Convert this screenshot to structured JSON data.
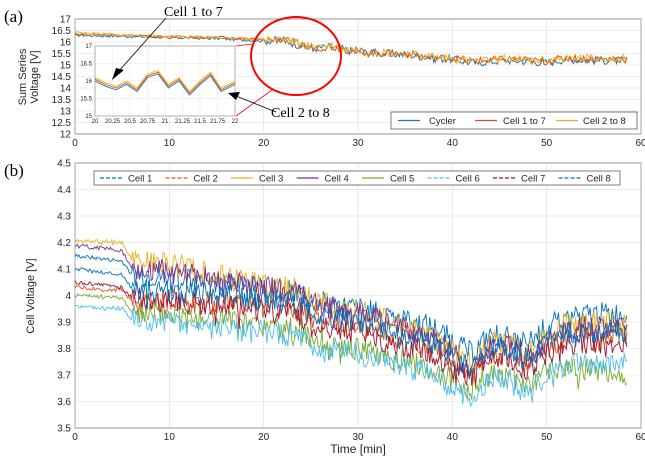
{
  "panel_labels": [
    "(a)",
    "(b)"
  ],
  "annotations": {
    "a": "Cell 1 to 7",
    "b": "Cell 2 to 8"
  },
  "colors": {
    "Cycler": "#1f77b4",
    "Cell 1 to 7": "#d95319",
    "Cell 2 to 8": "#edb120",
    "Cell 1": "#0072bd",
    "Cell 2": "#d95319",
    "Cell 3": "#edb120",
    "Cell 4": "#7e2f8e",
    "Cell 5": "#77ac30",
    "Cell 6": "#4dbeee",
    "Cell 7": "#a2142f",
    "Cell 8": "#0072bd",
    "highlight": "#ff0000"
  },
  "chart_data": [
    {
      "type": "line",
      "ylabel": "Sum Series\nVoltage [V]",
      "xlim": [
        0,
        60
      ],
      "ylim": [
        12,
        17
      ],
      "xticks": [
        0,
        10,
        20,
        30,
        40,
        50,
        60
      ],
      "yticks": [
        12,
        12.5,
        13,
        13.5,
        14,
        14.5,
        15,
        15.5,
        16,
        16.5,
        17
      ],
      "ytick_labels": [
        "12",
        "12.5",
        "13",
        "13.5",
        "14",
        "14.5",
        "15",
        "15.5",
        "16",
        "16.5",
        "17"
      ],
      "grid": true,
      "legend_position": "bottom-right",
      "x": [
        0,
        5,
        10,
        15,
        20,
        22,
        25,
        27,
        30,
        33,
        35,
        38,
        40,
        42,
        44,
        46,
        48,
        50,
        52,
        55,
        58.5
      ],
      "series": [
        {
          "name": "Cycler",
          "values": [
            16.3,
            16.25,
            16.2,
            16.15,
            16.05,
            16.1,
            15.7,
            15.8,
            15.55,
            15.5,
            15.45,
            15.3,
            15.25,
            15.1,
            15.15,
            15.2,
            15.15,
            15.1,
            15.25,
            15.2,
            15.2
          ]
        },
        {
          "name": "Cell 1 to 7",
          "values": [
            16.35,
            16.3,
            16.2,
            16.2,
            16.1,
            16.1,
            15.75,
            15.8,
            15.6,
            15.5,
            15.5,
            15.3,
            15.3,
            15.15,
            15.2,
            15.25,
            15.2,
            15.15,
            15.3,
            15.25,
            15.25
          ]
        },
        {
          "name": "Cell 2 to 8",
          "values": [
            16.4,
            16.3,
            16.25,
            16.2,
            16.1,
            16.15,
            15.8,
            15.85,
            15.6,
            15.55,
            15.5,
            15.35,
            15.3,
            15.2,
            15.2,
            15.3,
            15.2,
            15.2,
            15.3,
            15.3,
            15.3
          ]
        }
      ],
      "inset": {
        "xlim": [
          20,
          22
        ],
        "ylim": [
          15,
          17
        ],
        "xtick_labels": [
          "20",
          "20.25",
          "20.5",
          "20.75",
          "21",
          "21.25",
          "21.5",
          "21.75",
          "22"
        ],
        "ytick_labels": [
          "15",
          "15.5",
          "16",
          "16.5",
          "17"
        ],
        "x": [
          20,
          20.15,
          20.3,
          20.45,
          20.6,
          20.75,
          20.9,
          21.05,
          21.2,
          21.35,
          21.5,
          21.65,
          21.8,
          22
        ],
        "series": [
          {
            "name": "Cycler",
            "values": [
              16.0,
              15.85,
              15.75,
              15.9,
              15.7,
              16.1,
              16.2,
              15.8,
              16.0,
              15.6,
              15.9,
              16.15,
              15.7,
              15.9
            ]
          },
          {
            "name": "Cell 1 to 7",
            "values": [
              16.05,
              15.9,
              15.8,
              15.95,
              15.75,
              16.15,
              16.25,
              15.85,
              16.05,
              15.65,
              15.95,
              16.2,
              15.75,
              15.95
            ]
          },
          {
            "name": "Cell 2 to 8",
            "values": [
              16.1,
              15.95,
              15.85,
              16.0,
              15.8,
              16.2,
              16.3,
              15.9,
              16.1,
              15.7,
              16.0,
              16.25,
              15.8,
              16.0
            ]
          }
        ]
      }
    },
    {
      "type": "line",
      "xlabel": "Time [min]",
      "ylabel": "Cell Voltage [V]",
      "xlim": [
        0,
        60
      ],
      "ylim": [
        3.5,
        4.5
      ],
      "xticks": [
        0,
        10,
        20,
        30,
        40,
        50,
        60
      ],
      "yticks": [
        3.5,
        3.6,
        3.7,
        3.8,
        3.9,
        4,
        4.1,
        4.2,
        4.3,
        4.4,
        4.5
      ],
      "ytick_labels": [
        "3.5",
        "3.6",
        "3.7",
        "3.8",
        "3.9",
        "4",
        "4.1",
        "4.2",
        "4.3",
        "4.4",
        "4.5"
      ],
      "grid": true,
      "legend_position": "top",
      "x": [
        0,
        5,
        6,
        10,
        15,
        20,
        24,
        25,
        30,
        34,
        38,
        42,
        44,
        46,
        48,
        50,
        52,
        55,
        58.5
      ],
      "series": [
        {
          "name": "Cell 1",
          "values": [
            4.15,
            4.13,
            4.08,
            4.07,
            4.05,
            4.02,
            4.01,
            3.98,
            3.95,
            3.92,
            3.88,
            3.78,
            3.85,
            3.84,
            3.82,
            3.88,
            3.92,
            3.93,
            3.93
          ]
        },
        {
          "name": "Cell 2",
          "values": [
            4.03,
            4.02,
            3.98,
            3.98,
            3.97,
            3.96,
            3.95,
            3.92,
            3.88,
            3.84,
            3.8,
            3.7,
            3.78,
            3.78,
            3.74,
            3.8,
            3.85,
            3.86,
            3.86
          ]
        },
        {
          "name": "Cell 3",
          "values": [
            4.21,
            4.2,
            4.14,
            4.12,
            4.08,
            4.04,
            4.02,
            3.98,
            3.94,
            3.9,
            3.85,
            3.74,
            3.82,
            3.82,
            3.78,
            3.84,
            3.89,
            3.9,
            3.9
          ]
        },
        {
          "name": "Cell 4",
          "values": [
            4.19,
            4.17,
            4.1,
            4.09,
            4.06,
            4.03,
            4.01,
            3.97,
            3.93,
            3.89,
            3.84,
            3.73,
            3.81,
            3.81,
            3.77,
            3.83,
            3.88,
            3.88,
            3.88
          ]
        },
        {
          "name": "Cell 5",
          "values": [
            4.0,
            3.99,
            3.94,
            3.93,
            3.91,
            3.88,
            3.87,
            3.83,
            3.8,
            3.76,
            3.72,
            3.64,
            3.7,
            3.7,
            3.66,
            3.72,
            3.73,
            3.72,
            3.7
          ]
        },
        {
          "name": "Cell 6",
          "values": [
            3.96,
            3.95,
            3.91,
            3.9,
            3.88,
            3.86,
            3.85,
            3.81,
            3.78,
            3.74,
            3.7,
            3.6,
            3.68,
            3.68,
            3.62,
            3.7,
            3.74,
            3.74,
            3.74
          ]
        },
        {
          "name": "Cell 7",
          "values": [
            4.05,
            4.03,
            3.99,
            3.98,
            3.96,
            3.94,
            3.93,
            3.89,
            3.86,
            3.82,
            3.78,
            3.68,
            3.76,
            3.76,
            3.72,
            3.78,
            3.82,
            3.82,
            3.82
          ]
        },
        {
          "name": "Cell 8",
          "values": [
            4.1,
            4.08,
            4.03,
            4.02,
            4.0,
            3.98,
            3.97,
            3.93,
            3.9,
            3.86,
            3.82,
            3.72,
            3.8,
            3.8,
            3.76,
            3.82,
            3.86,
            3.86,
            3.86
          ]
        }
      ]
    }
  ]
}
